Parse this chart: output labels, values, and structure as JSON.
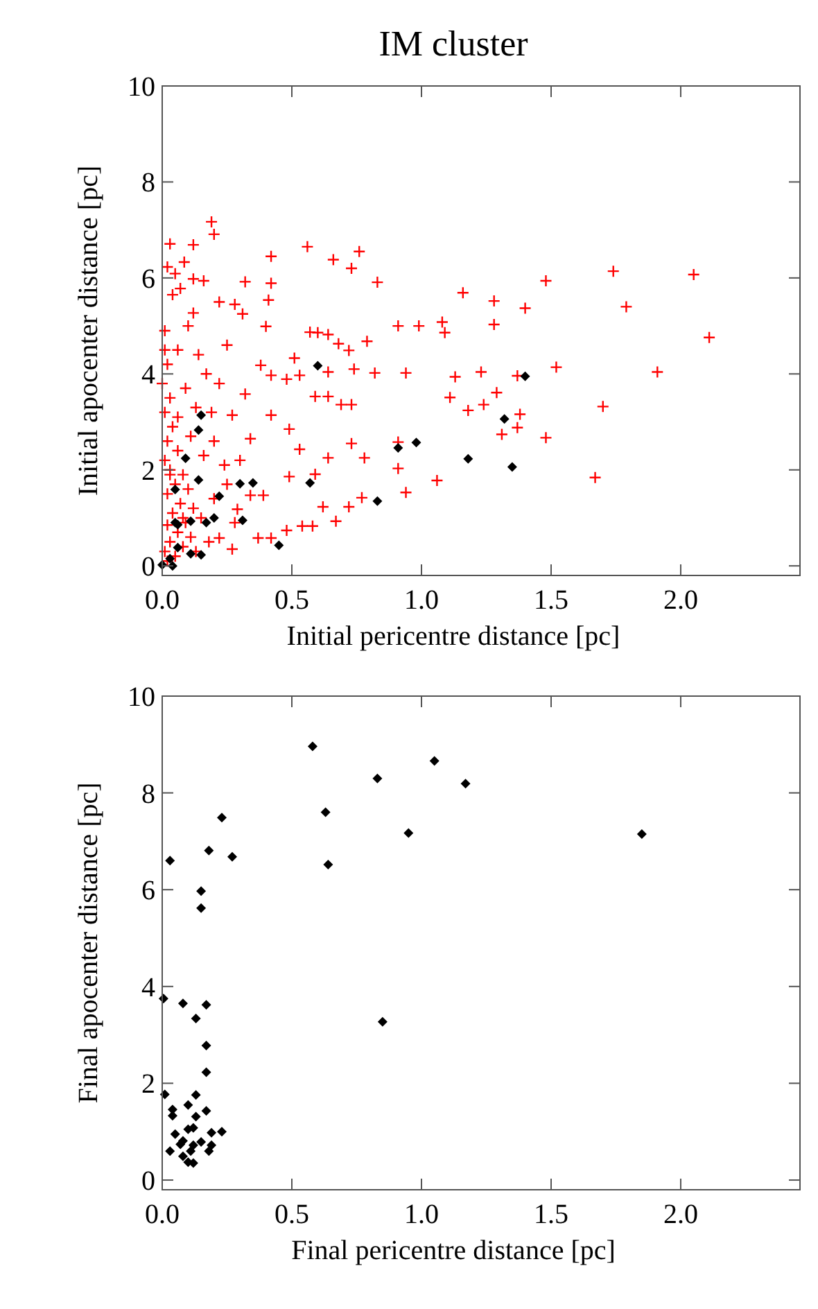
{
  "chart_data": [
    {
      "type": "scatter",
      "title": "IM cluster",
      "xlabel": "Initial pericentre distance [pc]",
      "ylabel": "Initial apocenter distance [pc]",
      "xlim": [
        0,
        2.46
      ],
      "ylim": [
        -0.2,
        10
      ],
      "xticks": [
        {
          "value": 0,
          "label": "0.0"
        },
        {
          "value": 0.5,
          "label": "0.5"
        },
        {
          "value": 1,
          "label": "1.0"
        },
        {
          "value": 1.5,
          "label": "1.5"
        },
        {
          "value": 2,
          "label": "2.0"
        }
      ],
      "yticks": [
        0,
        2,
        4,
        6,
        8,
        10
      ],
      "grid": false,
      "series": [
        {
          "color": "#ff0000",
          "marker": "cross",
          "x": [
            0.19,
            0.2,
            0.03,
            0.12,
            0.02,
            0.085,
            0.05,
            0.04,
            0.07,
            0.12,
            0.16,
            0.32,
            0.42,
            0.42,
            0.22,
            0.28,
            0.12,
            0.31,
            0.41,
            0.4,
            0.56,
            0.66,
            0.73,
            0.76,
            0.83,
            0.57,
            0.6,
            0.64,
            0.68,
            0.72,
            0.79,
            0.91,
            0.99,
            1.08,
            1.09,
            1.16,
            1.13,
            1.11,
            1.18,
            0.94,
            0.82,
            0.74,
            0.64,
            0.69,
            0.73,
            0.64,
            0.53,
            0.59,
            0.48,
            0.51,
            0.42,
            0.38,
            0.32,
            0.27,
            0.34,
            0.42,
            0.49,
            0.53,
            0.64,
            0.73,
            0.78,
            0.91,
            0.91,
            0.94,
            1.06,
            0.77,
            0.72,
            0.67,
            0.62,
            0.58,
            0.54,
            0.48,
            0.42,
            0.37,
            0.49,
            0.59,
            0.39,
            0.34,
            0.29,
            0.27,
            0.22,
            1.28,
            1.28,
            1.48,
            1.4,
            1.74,
            1.79,
            2.05,
            2.11,
            1.23,
            1.37,
            1.52,
            1.91,
            1.29,
            1.24,
            1.38,
            1.7,
            1.31,
            1.37,
            1.48,
            1.67,
            0.01,
            0.01,
            0.02,
            0,
            0.03,
            0.01,
            0.04,
            0.02,
            0.06,
            0.01,
            0.03,
            0.08,
            0.05,
            0.1,
            0.02,
            0.07,
            0.12,
            0.04,
            0.15,
            0.09,
            0.02,
            0.06,
            0.11,
            0.03,
            0.08,
            0.01,
            0.05,
            0.13,
            0.02,
            0.18,
            0.16,
            0.2,
            0.24,
            0.13,
            0.09,
            0.17,
            0.06,
            0.1,
            0.22,
            0.25,
            0.14,
            0.2,
            0.25,
            0.3,
            0.28,
            0.06,
            0.11,
            0.19,
            0.03,
            0.08
          ],
          "values": [
            7.17,
            6.91,
            6.71,
            6.69,
            6.23,
            6.33,
            6.09,
            5.65,
            5.78,
            5.98,
            5.94,
            5.92,
            6.45,
            5.89,
            5.5,
            5.45,
            5.27,
            5.25,
            5.54,
            4.99,
            6.65,
            6.38,
            6.2,
            6.55,
            5.91,
            4.87,
            4.86,
            4.82,
            4.63,
            4.49,
            4.68,
            5,
            5,
            5.08,
            4.86,
            5.69,
            3.94,
            3.51,
            3.24,
            4.02,
            4.02,
            4.1,
            4.04,
            3.36,
            3.36,
            3.53,
            3.97,
            3.53,
            3.89,
            4.33,
            3.97,
            4.18,
            3.58,
            3.14,
            2.65,
            3.14,
            2.85,
            2.43,
            2.25,
            2.55,
            2.25,
            2.58,
            2.03,
            1.53,
            1.78,
            1.42,
            1.23,
            0.93,
            1.23,
            0.83,
            0.83,
            0.74,
            0.58,
            0.58,
            1.86,
            1.91,
            1.47,
            1.47,
            1.18,
            0.35,
            0.58,
            5.52,
            5.03,
            5.94,
            5.37,
            6.14,
            5.4,
            6.07,
            4.76,
            4.04,
            3.96,
            4.14,
            4.04,
            3.61,
            3.36,
            3.16,
            3.32,
            2.74,
            2.88,
            2.67,
            1.84,
            4.9,
            4.5,
            4.2,
            3.8,
            3.5,
            3.2,
            2.9,
            2.6,
            2.4,
            2.2,
            2,
            1.9,
            1.7,
            1.6,
            1.5,
            1.3,
            1.2,
            1.1,
            1,
            0.9,
            0.85,
            0.7,
            0.6,
            0.5,
            0.4,
            0.3,
            0.2,
            0.3,
            0.1,
            0.5,
            2.3,
            2.6,
            2.1,
            3.3,
            3.7,
            4,
            4.5,
            5,
            3.8,
            4.6,
            4.4,
            1.4,
            1.7,
            2.2,
            0.9,
            3.1,
            2.7,
            3.2,
            1.9,
            1
          ]
        },
        {
          "color": "#000000",
          "marker": "diamond",
          "x": [
            0.6,
            0.15,
            0.14,
            0.09,
            0.14,
            0.05,
            0.3,
            0.35,
            0.22,
            0.57,
            0.83,
            0.91,
            0.98,
            1.18,
            0.2,
            0.17,
            0.11,
            0.05,
            0.06,
            0.31,
            0.06,
            0.11,
            0.15,
            0.45,
            0.03,
            0,
            0.04,
            1.4,
            1.32,
            1.35
          ],
          "values": [
            4.17,
            3.14,
            2.83,
            2.24,
            1.79,
            1.59,
            1.71,
            1.73,
            1.45,
            1.73,
            1.35,
            2.46,
            2.57,
            2.23,
            1,
            0.9,
            0.93,
            0.9,
            0.86,
            0.95,
            0.38,
            0.25,
            0.23,
            0.43,
            0.15,
            0.02,
            0,
            3.95,
            3.06,
            2.06
          ]
        }
      ]
    },
    {
      "type": "scatter",
      "xlabel": "Final pericentre distance [pc]",
      "ylabel": "Final apocenter distance [pc]",
      "xlim": [
        0,
        2.46
      ],
      "ylim": [
        -0.2,
        10
      ],
      "xticks": [
        {
          "value": 0,
          "label": "0.0"
        },
        {
          "value": 0.5,
          "label": "0.5"
        },
        {
          "value": 1,
          "label": "1.0"
        },
        {
          "value": 1.5,
          "label": "1.5"
        },
        {
          "value": 2,
          "label": "2.0"
        }
      ],
      "yticks": [
        0,
        2,
        4,
        6,
        8,
        10
      ],
      "grid": false,
      "series": [
        {
          "color": "#000000",
          "marker": "diamond",
          "x": [
            0.58,
            1.05,
            0.83,
            1.17,
            0.63,
            0.95,
            1.85,
            0.64,
            0.23,
            0.18,
            0.27,
            0.03,
            0.15,
            0.15,
            0.85,
            0.005,
            0.08,
            0.17,
            0.13,
            0.17,
            0.17,
            0.01,
            0.13,
            0.04,
            0.04,
            0.1,
            0.13,
            0.17,
            0.05,
            0.1,
            0.12,
            0.19,
            0.23,
            0.07,
            0.08,
            0.12,
            0.15,
            0.03,
            0.11,
            0.19,
            0.18,
            0.08,
            0.1,
            0.12
          ],
          "values": [
            8.96,
            8.66,
            8.3,
            8.19,
            7.6,
            7.17,
            7.15,
            6.52,
            7.49,
            6.81,
            6.68,
            6.6,
            5.97,
            5.62,
            3.27,
            3.75,
            3.65,
            3.62,
            3.34,
            2.78,
            2.23,
            1.77,
            1.76,
            1.46,
            1.33,
            1.55,
            1.31,
            1.43,
            0.95,
            1.05,
            1.08,
            0.98,
            1,
            0.74,
            0.81,
            0.72,
            0.79,
            0.6,
            0.6,
            0.72,
            0.6,
            0.49,
            0.37,
            0.35
          ]
        }
      ]
    }
  ]
}
